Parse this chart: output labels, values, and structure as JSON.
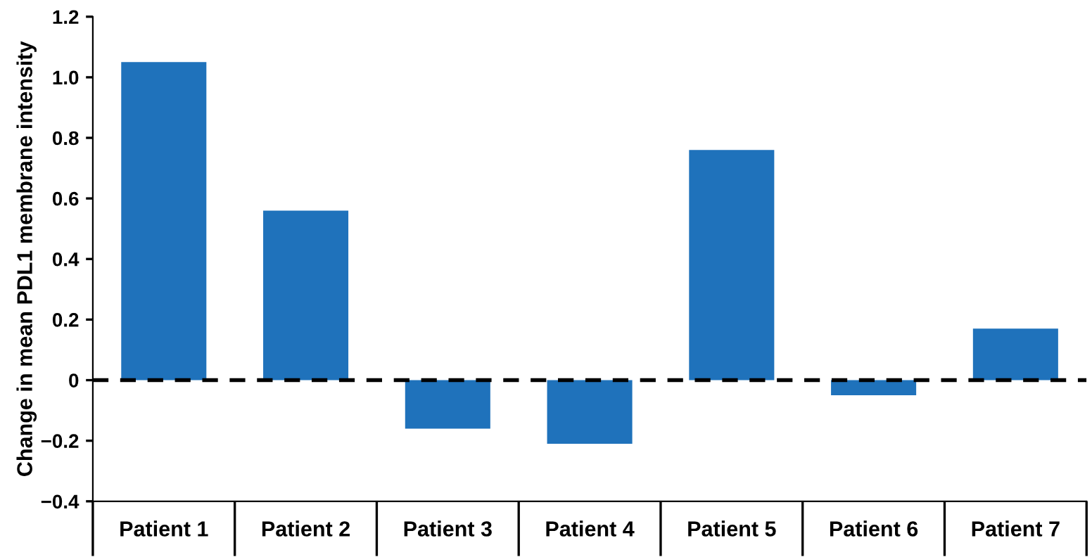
{
  "chart_data": {
    "type": "bar",
    "ylabel": "Change in mean PDL1 membrane intensity",
    "categories": [
      "Patient 1",
      "Patient 2",
      "Patient 3",
      "Patient 4",
      "Patient 5",
      "Patient 6",
      "Patient 7"
    ],
    "values": [
      1.05,
      0.56,
      -0.16,
      -0.21,
      0.76,
      -0.05,
      0.17
    ],
    "color": "#1f72bb",
    "ylim": [
      -0.4,
      1.2
    ],
    "yticks": [
      {
        "value": -0.4,
        "label": "−0.4"
      },
      {
        "value": -0.2,
        "label": "−0.2"
      },
      0,
      0.2,
      0.4,
      0.6,
      0.8,
      {
        "value": 1,
        "label": "1.0"
      },
      1.2
    ],
    "ref_lines": [
      {
        "axis": "y",
        "value": 0,
        "color": "#000000",
        "line_style": "dashed"
      }
    ],
    "grid": false,
    "legend": false
  }
}
